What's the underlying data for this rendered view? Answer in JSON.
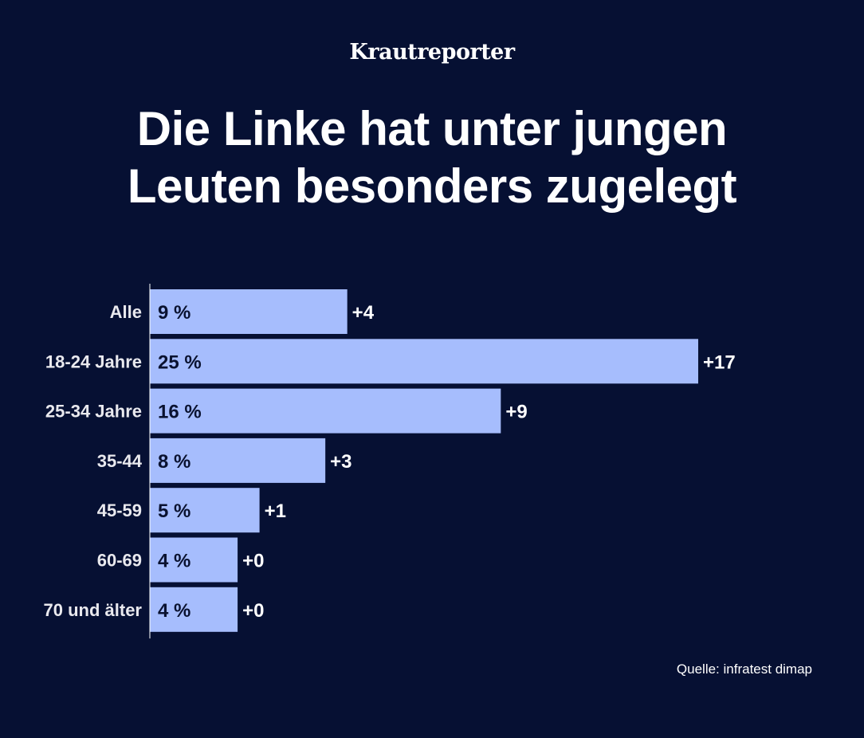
{
  "brand": "Krautreporter",
  "title_line1": "Die Linke hat unter jungen",
  "title_line2": "Leuten besonders zugelegt",
  "source_prefix": "Quelle: ",
  "source_name": "infratest dimap",
  "colors": {
    "background": "#061033",
    "bar": "#a6bdfd",
    "bar_text": "#0a1230",
    "label_text": "#e9e9ee",
    "change_text": "#ffffff",
    "axis": "#ffffff"
  },
  "chart_data": {
    "type": "bar",
    "orientation": "horizontal",
    "categories": [
      "Alle",
      "18-24 Jahre",
      "25-34 Jahre",
      "35-44",
      "45-59",
      "60-69",
      "70 und älter"
    ],
    "values": [
      9,
      25,
      16,
      8,
      5,
      4,
      4
    ],
    "value_labels": [
      "9 %",
      "25 %",
      "16 %",
      "8 %",
      "5 %",
      "4 %",
      "4 %"
    ],
    "changes": [
      "+4",
      "+17",
      "+9",
      "+3",
      "+1",
      "+0",
      "+0"
    ],
    "xlim": [
      0,
      25
    ],
    "grid": false,
    "legend": "none"
  }
}
